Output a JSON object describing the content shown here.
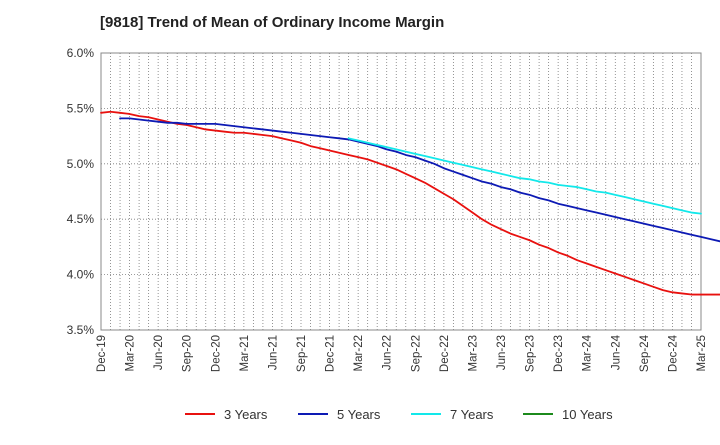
{
  "chart_data": {
    "type": "line",
    "title": "[9818]  Trend of Mean of Ordinary Income Margin",
    "xlabel": "",
    "ylabel": "",
    "ylim": [
      3.5,
      6.0
    ],
    "y_ticks": [
      "3.5%",
      "4.0%",
      "4.5%",
      "5.0%",
      "5.5%",
      "6.0%"
    ],
    "x_ticks": [
      "Dec-19",
      "Mar-20",
      "Jun-20",
      "Sep-20",
      "Dec-20",
      "Mar-21",
      "Jun-21",
      "Sep-21",
      "Dec-21",
      "Mar-22",
      "Jun-22",
      "Sep-22",
      "Dec-22",
      "Mar-23",
      "Jun-23",
      "Sep-23",
      "Dec-23",
      "Mar-24",
      "Jun-24",
      "Sep-24",
      "Dec-24",
      "Mar-25"
    ],
    "x_range_months": [
      "2019-12",
      "2025-03"
    ],
    "grid": "vertical dotted monthly, horizontal dotted",
    "legend_position": "bottom",
    "series": [
      {
        "name": "3 Years",
        "color": "#e8110f",
        "start": "2019-12",
        "values": [
          5.46,
          5.47,
          5.46,
          5.45,
          5.43,
          5.42,
          5.4,
          5.38,
          5.36,
          5.35,
          5.33,
          5.31,
          5.3,
          5.29,
          5.28,
          5.28,
          5.27,
          5.26,
          5.25,
          5.23,
          5.21,
          5.19,
          5.16,
          5.14,
          5.12,
          5.1,
          5.08,
          5.06,
          5.04,
          5.01,
          4.98,
          4.95,
          4.91,
          4.87,
          4.83,
          4.78,
          4.73,
          4.68,
          4.62,
          4.56,
          4.5,
          4.45,
          4.41,
          4.37,
          4.34,
          4.31,
          4.27,
          4.24,
          4.2,
          4.17,
          4.13,
          4.1,
          4.07,
          4.04,
          4.01,
          3.98,
          3.95,
          3.92,
          3.89,
          3.86,
          3.84,
          3.83,
          3.82,
          3.82,
          3.82,
          3.82,
          3.82,
          3.81,
          3.81
        ]
      },
      {
        "name": "5 Years",
        "color": "#0d1ab4",
        "start": "2020-02",
        "values": [
          5.41,
          5.41,
          5.4,
          5.39,
          5.38,
          5.37,
          5.37,
          5.36,
          5.36,
          5.36,
          5.36,
          5.35,
          5.34,
          5.33,
          5.32,
          5.31,
          5.3,
          5.29,
          5.28,
          5.27,
          5.26,
          5.25,
          5.24,
          5.23,
          5.22,
          5.2,
          5.18,
          5.16,
          5.13,
          5.11,
          5.08,
          5.06,
          5.03,
          5.0,
          4.96,
          4.93,
          4.9,
          4.87,
          4.84,
          4.82,
          4.79,
          4.77,
          4.74,
          4.72,
          4.69,
          4.67,
          4.64,
          4.62,
          4.6,
          4.58,
          4.56,
          4.54,
          4.52,
          4.5,
          4.48,
          4.46,
          4.44,
          4.42,
          4.4,
          4.38,
          4.36,
          4.34,
          4.32,
          4.3,
          4.27,
          4.23
        ]
      },
      {
        "name": "7 Years",
        "color": "#12e8ea",
        "start": "2022-02",
        "values": [
          5.23,
          5.21,
          5.19,
          5.17,
          5.15,
          5.13,
          5.11,
          5.09,
          5.07,
          5.05,
          5.03,
          5.01,
          4.99,
          4.97,
          4.95,
          4.93,
          4.91,
          4.89,
          4.87,
          4.86,
          4.84,
          4.83,
          4.81,
          4.8,
          4.79,
          4.77,
          4.75,
          4.74,
          4.72,
          4.7,
          4.68,
          4.66,
          4.64,
          4.62,
          4.6,
          4.58,
          4.56,
          4.55
        ]
      },
      {
        "name": "10 Years",
        "color": "#1c8a1c",
        "start": "2024-12",
        "values": []
      }
    ]
  }
}
